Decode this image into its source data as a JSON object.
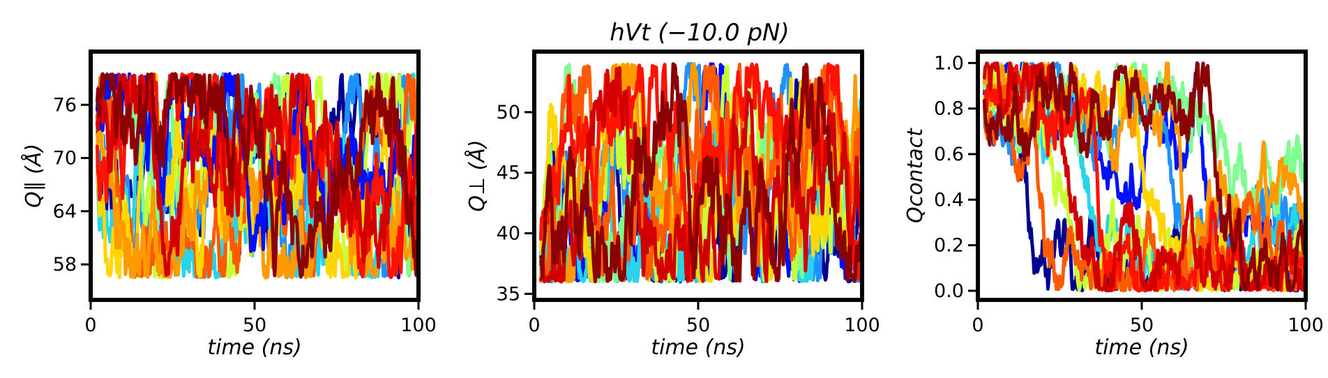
{
  "figure_title": "hVt (−10.0 pN)",
  "palette": [
    "#00008f",
    "#0010ff",
    "#1e90ff",
    "#2ad4e8",
    "#7fff8e",
    "#c8ff38",
    "#ffd700",
    "#ff9a00",
    "#ff5a00",
    "#ff1200",
    "#d20000",
    "#8b0000"
  ],
  "chart_data": [
    {
      "type": "line",
      "xlabel": "time (ns)",
      "ylabel": "Q∥ (Å)",
      "xlim": [
        0,
        100
      ],
      "ylim": [
        54,
        82
      ],
      "x_ticks": [
        0,
        50,
        100
      ],
      "x_tick_labels": [
        "0",
        "50",
        "100"
      ],
      "y_ticks": [
        58,
        64,
        70,
        76
      ],
      "y_tick_labels": [
        "58",
        "64",
        "70",
        "76"
      ],
      "n_series": 12,
      "series_color_order": [
        0,
        2,
        4,
        3,
        5,
        8,
        6,
        7,
        1,
        9,
        10,
        11
      ],
      "x_start": 2,
      "x_end": 100,
      "value_floor": 56.5,
      "value_ceiling": 79.5,
      "start_value": 70,
      "value_spread": 7,
      "drift_targets": [
        68,
        72,
        65,
        62,
        67,
        66,
        63,
        62,
        71,
        66,
        70,
        71
      ],
      "noise_amplitude": 3.2
    },
    {
      "type": "line",
      "xlabel": "time (ns)",
      "ylabel": "Q⊥ (Å)",
      "xlim": [
        0,
        100
      ],
      "ylim": [
        34.5,
        55
      ],
      "x_ticks": [
        0,
        50,
        100
      ],
      "x_tick_labels": [
        "0",
        "50",
        "100"
      ],
      "y_ticks": [
        35,
        40,
        45,
        50
      ],
      "y_tick_labels": [
        "35",
        "40",
        "45",
        "50"
      ],
      "n_series": 12,
      "series_color_order": [
        0,
        1,
        2,
        3,
        4,
        5,
        6,
        7,
        8,
        9,
        10,
        11
      ],
      "x_start": 2,
      "x_end": 100,
      "value_floor": 36,
      "value_ceiling": 54,
      "start_value": 40,
      "value_spread": 4,
      "drift_targets": [
        46,
        41,
        40,
        39,
        44,
        42,
        46,
        48,
        47,
        49,
        45,
        42
      ],
      "noise_amplitude": 2.6
    },
    {
      "type": "line",
      "xlabel": "time (ns)",
      "ylabel": "Qcontact",
      "xlim": [
        0,
        100
      ],
      "ylim": [
        -0.04,
        1.05
      ],
      "x_ticks": [
        0,
        50,
        100
      ],
      "x_tick_labels": [
        "0",
        "50",
        "100"
      ],
      "y_ticks": [
        0.0,
        0.2,
        0.4,
        0.6,
        0.8,
        1.0
      ],
      "y_tick_labels": [
        "0.0",
        "0.2",
        "0.4",
        "0.6",
        "0.8",
        "1.0"
      ],
      "n_series": 12,
      "series_color_order": [
        0,
        1,
        2,
        3,
        4,
        5,
        6,
        7,
        8,
        9,
        10,
        11
      ],
      "x_start": 2,
      "x_end": 100,
      "value_floor": 0.0,
      "value_ceiling": 1.0,
      "start_value": 0.85,
      "value_spread": 0.15,
      "drift_targets": [
        0.0,
        0.05,
        0.15,
        0.2,
        0.3,
        0.0,
        0.05,
        0.35,
        0.1,
        0.0,
        0.05,
        0.05
      ],
      "decay_times": [
        12,
        68,
        55,
        30,
        75,
        20,
        48,
        60,
        18,
        35,
        25,
        72
      ],
      "noise_amplitude": 0.08
    }
  ]
}
